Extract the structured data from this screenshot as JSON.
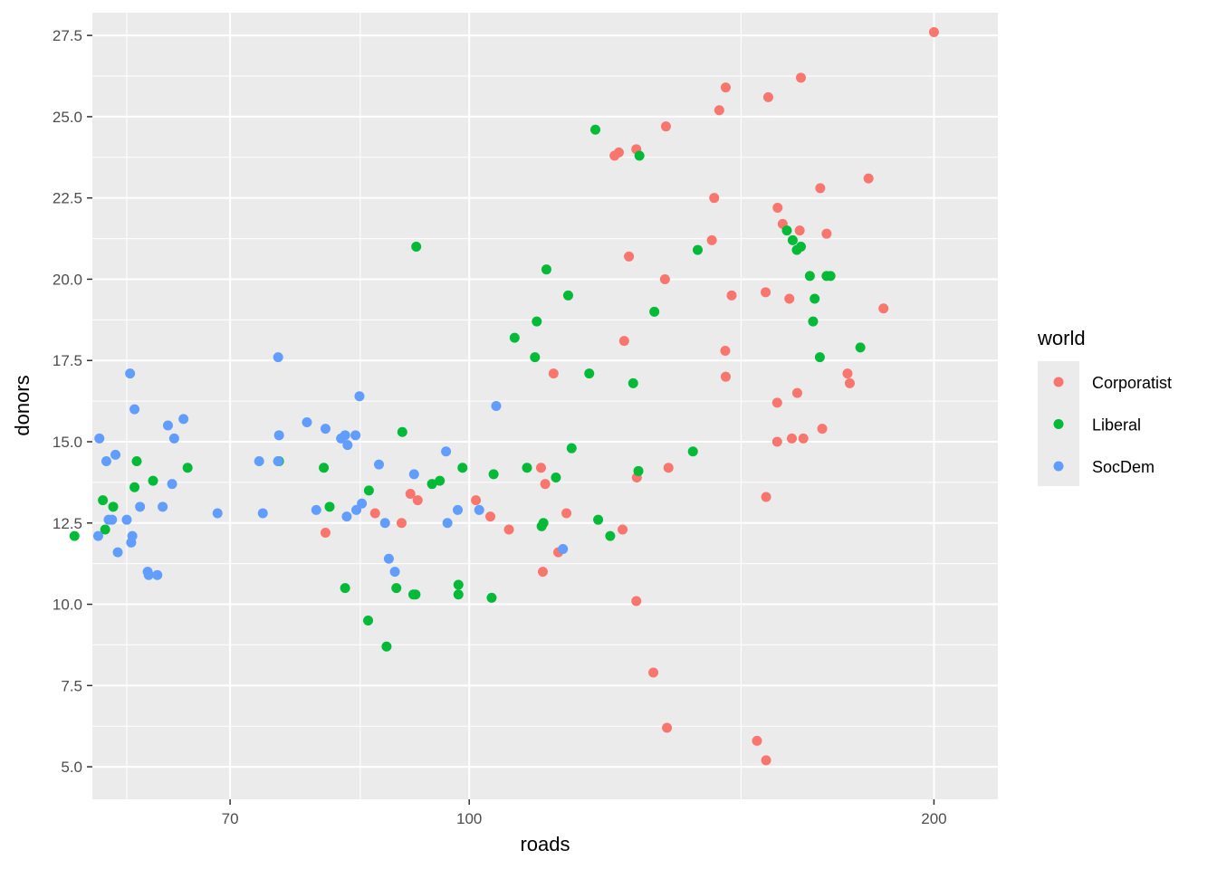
{
  "chart_data": {
    "type": "scatter",
    "title": "",
    "xlabel": "roads",
    "ylabel": "donors",
    "x_scale": "log",
    "xlim": [
      57,
      220
    ],
    "ylim": [
      4.0,
      28.2
    ],
    "x_ticks": [
      70,
      100,
      200
    ],
    "x_tick_labels": [
      "70",
      "100",
      "200"
    ],
    "y_ticks": [
      5.0,
      7.5,
      10.0,
      12.5,
      15.0,
      17.5,
      20.0,
      22.5,
      25.0,
      27.5
    ],
    "y_tick_labels": [
      "5.0",
      "7.5",
      "10.0",
      "12.5",
      "15.0",
      "17.5",
      "20.0",
      "22.5",
      "25.0",
      "27.5"
    ],
    "grid": true,
    "legend": {
      "title": "world",
      "position": "right"
    },
    "series": [
      {
        "name": "Corporatist",
        "color": "#F8766D",
        "points": [
          [
            200.0,
            27.6
          ],
          [
            164.0,
            26.2
          ],
          [
            146.6,
            25.9
          ],
          [
            156.2,
            25.6
          ],
          [
            145.2,
            25.2
          ],
          [
            134.1,
            24.7
          ],
          [
            128.3,
            24.0
          ],
          [
            125.0,
            23.9
          ],
          [
            124.2,
            23.8
          ],
          [
            181.4,
            23.1
          ],
          [
            168.8,
            22.8
          ],
          [
            144.1,
            22.5
          ],
          [
            158.4,
            22.2
          ],
          [
            170.4,
            21.4
          ],
          [
            159.6,
            21.7
          ],
          [
            163.7,
            21.5
          ],
          [
            143.6,
            21.2
          ],
          [
            126.9,
            20.7
          ],
          [
            133.9,
            20.0
          ],
          [
            147.9,
            19.5
          ],
          [
            155.6,
            19.6
          ],
          [
            161.2,
            19.4
          ],
          [
            185.5,
            19.1
          ],
          [
            126.0,
            18.1
          ],
          [
            146.5,
            17.8
          ],
          [
            146.6,
            17.0
          ],
          [
            113.4,
            17.1
          ],
          [
            175.8,
            17.1
          ],
          [
            176.4,
            16.8
          ],
          [
            163.1,
            16.5
          ],
          [
            158.3,
            16.2
          ],
          [
            164.6,
            15.1
          ],
          [
            161.8,
            15.1
          ],
          [
            158.3,
            15.0
          ],
          [
            169.3,
            15.4
          ],
          [
            111.3,
            14.2
          ],
          [
            112.0,
            13.7
          ],
          [
            128.4,
            13.9
          ],
          [
            134.6,
            14.2
          ],
          [
            155.7,
            13.3
          ],
          [
            92.6,
            13.2
          ],
          [
            91.6,
            13.4
          ],
          [
            101.0,
            13.2
          ],
          [
            103.2,
            12.7
          ],
          [
            115.6,
            12.8
          ],
          [
            106.1,
            12.3
          ],
          [
            125.7,
            12.3
          ],
          [
            90.4,
            12.5
          ],
          [
            86.9,
            12.8
          ],
          [
            80.7,
            12.2
          ],
          [
            114.2,
            11.6
          ],
          [
            111.6,
            11.0
          ],
          [
            128.3,
            10.1
          ],
          [
            131.6,
            7.9
          ],
          [
            134.3,
            6.2
          ],
          [
            153.6,
            5.8
          ],
          [
            155.7,
            5.2
          ]
        ]
      },
      {
        "name": "Liberal",
        "color": "#00BA38",
        "points": [
          [
            120.7,
            24.6
          ],
          [
            128.9,
            23.8
          ],
          [
            92.4,
            21.0
          ],
          [
            140.6,
            20.9
          ],
          [
            160.6,
            21.5
          ],
          [
            162.0,
            21.2
          ],
          [
            164.0,
            21.0
          ],
          [
            163.0,
            20.9
          ],
          [
            170.4,
            20.1
          ],
          [
            171.4,
            20.1
          ],
          [
            166.2,
            20.1
          ],
          [
            112.2,
            20.3
          ],
          [
            115.9,
            19.5
          ],
          [
            131.8,
            19.0
          ],
          [
            167.4,
            19.4
          ],
          [
            107.0,
            18.2
          ],
          [
            110.6,
            18.7
          ],
          [
            167.0,
            18.7
          ],
          [
            110.3,
            17.6
          ],
          [
            168.7,
            17.6
          ],
          [
            179.2,
            17.9
          ],
          [
            119.6,
            17.1
          ],
          [
            127.7,
            16.8
          ],
          [
            90.5,
            15.3
          ],
          [
            75.3,
            14.4
          ],
          [
            75.2,
            14.4
          ],
          [
            109.0,
            14.2
          ],
          [
            99.0,
            14.2
          ],
          [
            103.7,
            14.0
          ],
          [
            116.5,
            14.8
          ],
          [
            113.8,
            13.9
          ],
          [
            128.7,
            14.1
          ],
          [
            139.6,
            14.7
          ],
          [
            62.4,
            13.8
          ],
          [
            65.7,
            14.2
          ],
          [
            60.9,
            14.4
          ],
          [
            60.7,
            13.6
          ],
          [
            57.9,
            13.2
          ],
          [
            58.8,
            13.0
          ],
          [
            58.1,
            12.3
          ],
          [
            55.5,
            12.1
          ],
          [
            80.5,
            14.2
          ],
          [
            81.2,
            13.0
          ],
          [
            86.1,
            13.5
          ],
          [
            94.6,
            13.7
          ],
          [
            95.7,
            13.8
          ],
          [
            111.7,
            12.5
          ],
          [
            111.4,
            12.4
          ],
          [
            121.2,
            12.6
          ],
          [
            123.4,
            12.1
          ],
          [
            98.4,
            10.6
          ],
          [
            98.4,
            10.3
          ],
          [
            103.4,
            10.2
          ],
          [
            89.7,
            10.5
          ],
          [
            92.3,
            10.3
          ],
          [
            92.0,
            10.3
          ],
          [
            86.0,
            9.5
          ],
          [
            88.4,
            8.7
          ],
          [
            83.1,
            10.5
          ]
        ]
      },
      {
        "name": "SocDem",
        "color": "#619CFF",
        "points": [
          [
            57.6,
            15.1
          ],
          [
            60.3,
            17.1
          ],
          [
            60.7,
            16.0
          ],
          [
            63.8,
            15.5
          ],
          [
            64.4,
            15.1
          ],
          [
            65.3,
            15.7
          ],
          [
            75.2,
            17.6
          ],
          [
            75.3,
            15.2
          ],
          [
            75.2,
            14.4
          ],
          [
            73.1,
            14.4
          ],
          [
            78.5,
            15.6
          ],
          [
            80.7,
            15.4
          ],
          [
            82.6,
            15.1
          ],
          [
            83.4,
            14.9
          ],
          [
            83.1,
            15.2
          ],
          [
            84.4,
            15.2
          ],
          [
            84.9,
            16.4
          ],
          [
            87.4,
            14.3
          ],
          [
            92.1,
            14.0
          ],
          [
            96.6,
            14.7
          ],
          [
            104.1,
            16.1
          ],
          [
            98.3,
            12.9
          ],
          [
            101.5,
            12.9
          ],
          [
            96.8,
            12.5
          ],
          [
            88.2,
            12.5
          ],
          [
            83.3,
            12.7
          ],
          [
            79.6,
            12.9
          ],
          [
            73.5,
            12.8
          ],
          [
            68.7,
            12.8
          ],
          [
            64.2,
            13.7
          ],
          [
            63.3,
            13.0
          ],
          [
            61.2,
            13.0
          ],
          [
            60.0,
            12.6
          ],
          [
            57.5,
            12.1
          ],
          [
            58.7,
            12.6
          ],
          [
            58.4,
            12.6
          ],
          [
            59.0,
            14.6
          ],
          [
            58.2,
            14.4
          ],
          [
            59.2,
            11.6
          ],
          [
            60.4,
            11.9
          ],
          [
            60.5,
            12.1
          ],
          [
            61.9,
            11.0
          ],
          [
            62.0,
            10.9
          ],
          [
            62.8,
            10.9
          ],
          [
            88.7,
            11.4
          ],
          [
            89.5,
            11.0
          ],
          [
            115.0,
            11.7
          ],
          [
            84.5,
            12.9
          ],
          [
            85.2,
            13.1
          ]
        ]
      }
    ]
  }
}
